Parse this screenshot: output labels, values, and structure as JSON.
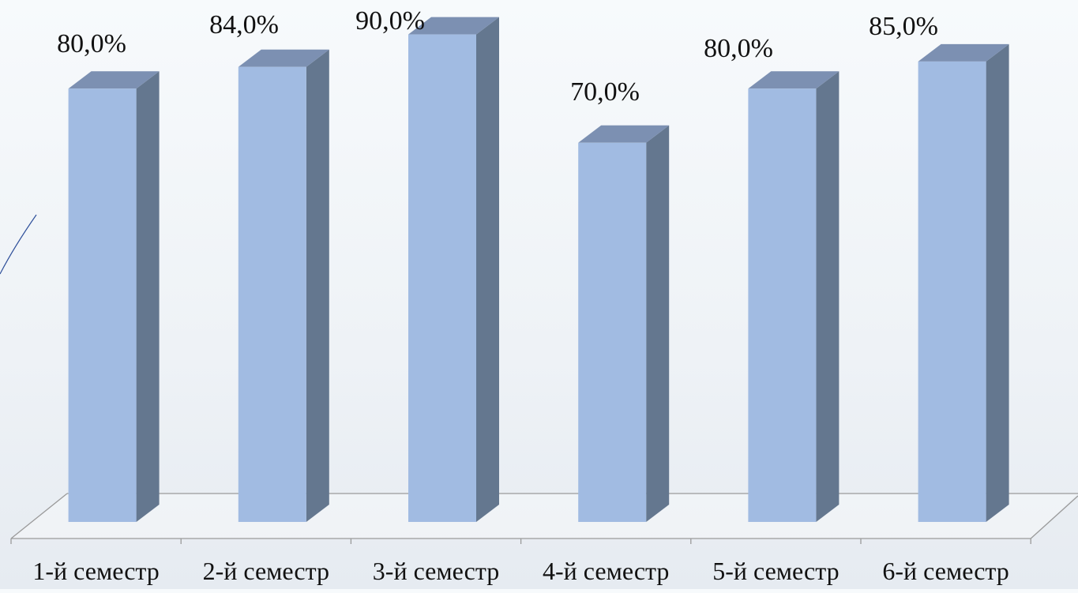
{
  "chart_data": {
    "type": "bar",
    "style": "3d-column",
    "categories": [
      "1-й семестр",
      "2-й семестр",
      "3-й семестр",
      "4-й семестр",
      "5-й семестр",
      "6-й семестр"
    ],
    "series": [
      {
        "values": [
          80.0,
          84.0,
          90.0,
          70.0,
          80.0,
          85.0
        ],
        "data_labels": [
          "80,0%",
          "84,0%",
          "90,0%",
          "70,0%",
          "80,0%",
          "85,0%"
        ]
      }
    ],
    "value_unit": "%",
    "ylim": [
      0,
      100
    ],
    "grid": false,
    "legend": "none",
    "title": "",
    "xlabel": "",
    "ylabel": ""
  },
  "colors": {
    "bar_front": "#a1bbe2",
    "bar_side": "#64778f",
    "bar_top": "#7c90b2",
    "floor_edge": "#9a9a9a",
    "label_text": "#111111",
    "accent_curve": "#2e4f9a"
  }
}
